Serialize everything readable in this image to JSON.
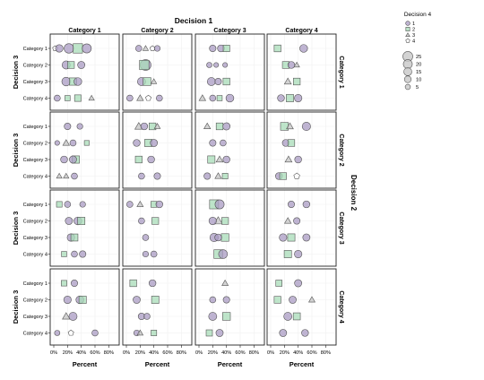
{
  "chart_data": {
    "type": "scatter",
    "title": "Decision 1",
    "top_strip_title": "Decision 1",
    "right_strip_title": "Decision 2",
    "row_axis_title": "Decision 3",
    "xlabel": "Percent",
    "x_ticks": [
      "0%",
      "20%",
      "40%",
      "60%",
      "80%"
    ],
    "xlim": [
      0,
      90
    ],
    "panel_columns": [
      "Category 1",
      "Category 2",
      "Category 3",
      "Category 4"
    ],
    "panel_rows": [
      "Category 1",
      "Category 2",
      "Category 3",
      "Category 4"
    ],
    "y_categories": [
      "Category 1",
      "Category 2",
      "Category 3",
      "Category 4"
    ],
    "legend_shape_title": "Decision 4",
    "legend_shape_labels": [
      "1",
      "2",
      "3",
      "4"
    ],
    "legend_size_values": [
      25,
      20,
      15,
      10,
      5
    ],
    "colors": {
      "1": "#a99bc3",
      "2": "#a8dcb8",
      "3": "#c4c4c4",
      "4": "#ffffff"
    },
    "panels": [
      {
        "row": 1,
        "col": 1,
        "points": [
          [
            2,
            1,
            4,
            4
          ],
          [
            8,
            1,
            1,
            10
          ],
          [
            22,
            1,
            1,
            18
          ],
          [
            35,
            1,
            2,
            22
          ],
          [
            48,
            1,
            1,
            16
          ],
          [
            18,
            2,
            1,
            12
          ],
          [
            25,
            2,
            2,
            10
          ],
          [
            40,
            2,
            1,
            9
          ],
          [
            18,
            3,
            1,
            14
          ],
          [
            28,
            3,
            2,
            12
          ],
          [
            35,
            3,
            1,
            11
          ],
          [
            5,
            4,
            1,
            6
          ],
          [
            20,
            4,
            2,
            5
          ],
          [
            35,
            4,
            2,
            9
          ],
          [
            55,
            4,
            3,
            5
          ]
        ]
      },
      {
        "row": 1,
        "col": 2,
        "points": [
          [
            18,
            1,
            1,
            6
          ],
          [
            28,
            1,
            3,
            5
          ],
          [
            38,
            1,
            4,
            4
          ],
          [
            45,
            1,
            1,
            5
          ],
          [
            28,
            2,
            1,
            24
          ],
          [
            26,
            2,
            2,
            22
          ],
          [
            22,
            3,
            1,
            12
          ],
          [
            30,
            3,
            2,
            14
          ],
          [
            40,
            3,
            3,
            5
          ],
          [
            5,
            4,
            1,
            6
          ],
          [
            20,
            4,
            3,
            8
          ],
          [
            32,
            4,
            4,
            5
          ],
          [
            48,
            4,
            1,
            6
          ]
        ]
      },
      {
        "row": 1,
        "col": 3,
        "points": [
          [
            20,
            1,
            1,
            7
          ],
          [
            32,
            1,
            1,
            8
          ],
          [
            40,
            1,
            2,
            9
          ],
          [
            15,
            2,
            1,
            4
          ],
          [
            25,
            2,
            1,
            3
          ],
          [
            38,
            2,
            1,
            3
          ],
          [
            18,
            3,
            1,
            12
          ],
          [
            28,
            3,
            1,
            7
          ],
          [
            40,
            3,
            2,
            10
          ],
          [
            5,
            4,
            3,
            8
          ],
          [
            20,
            4,
            1,
            6
          ],
          [
            30,
            4,
            2,
            5
          ],
          [
            45,
            4,
            1,
            11
          ]
        ]
      },
      {
        "row": 1,
        "col": 4,
        "points": [
          [
            10,
            1,
            2,
            10
          ],
          [
            48,
            1,
            1,
            11
          ],
          [
            22,
            2,
            2,
            10
          ],
          [
            30,
            2,
            1,
            8
          ],
          [
            38,
            2,
            3,
            5
          ],
          [
            25,
            3,
            3,
            9
          ],
          [
            38,
            3,
            2,
            10
          ],
          [
            15,
            4,
            1,
            8
          ],
          [
            28,
            4,
            2,
            12
          ],
          [
            40,
            4,
            1,
            10
          ]
        ]
      },
      {
        "row": 2,
        "col": 1,
        "points": [
          [
            20,
            1,
            1,
            7
          ],
          [
            38,
            1,
            1,
            5
          ],
          [
            5,
            2,
            1,
            3
          ],
          [
            18,
            2,
            3,
            8
          ],
          [
            28,
            2,
            1,
            6
          ],
          [
            48,
            2,
            2,
            4
          ],
          [
            15,
            3,
            1,
            8
          ],
          [
            32,
            3,
            2,
            12
          ],
          [
            28,
            3,
            1,
            9
          ],
          [
            18,
            4,
            3,
            5
          ],
          [
            30,
            4,
            1,
            6
          ],
          [
            8,
            4,
            3,
            5
          ]
        ]
      },
      {
        "row": 2,
        "col": 2,
        "points": [
          [
            18,
            1,
            3,
            12
          ],
          [
            26,
            1,
            1,
            8
          ],
          [
            38,
            1,
            2,
            10
          ],
          [
            45,
            1,
            3,
            6
          ],
          [
            15,
            2,
            1,
            8
          ],
          [
            32,
            2,
            2,
            12
          ],
          [
            40,
            2,
            1,
            9
          ],
          [
            18,
            3,
            2,
            10
          ],
          [
            36,
            3,
            1,
            8
          ],
          [
            22,
            4,
            1,
            6
          ],
          [
            45,
            4,
            1,
            7
          ]
        ]
      },
      {
        "row": 2,
        "col": 3,
        "points": [
          [
            12,
            1,
            3,
            8
          ],
          [
            30,
            1,
            2,
            10
          ],
          [
            40,
            1,
            1,
            9
          ],
          [
            20,
            2,
            1,
            7
          ],
          [
            35,
            2,
            1,
            6
          ],
          [
            18,
            3,
            2,
            12
          ],
          [
            30,
            3,
            3,
            9
          ],
          [
            40,
            3,
            1,
            8
          ],
          [
            12,
            4,
            1,
            7
          ],
          [
            28,
            4,
            3,
            8
          ],
          [
            38,
            4,
            2,
            6
          ]
        ]
      },
      {
        "row": 2,
        "col": 4,
        "points": [
          [
            20,
            1,
            2,
            14
          ],
          [
            28,
            1,
            3,
            9
          ],
          [
            52,
            1,
            1,
            13
          ],
          [
            22,
            2,
            1,
            8
          ],
          [
            30,
            2,
            2,
            10
          ],
          [
            26,
            3,
            3,
            9
          ],
          [
            40,
            3,
            1,
            8
          ],
          [
            12,
            4,
            1,
            8
          ],
          [
            18,
            4,
            2,
            10
          ],
          [
            38,
            4,
            4,
            6
          ]
        ]
      },
      {
        "row": 3,
        "col": 1,
        "points": [
          [
            8,
            1,
            2,
            6
          ],
          [
            20,
            1,
            1,
            6
          ],
          [
            42,
            1,
            1,
            5
          ],
          [
            22,
            2,
            1,
            9
          ],
          [
            35,
            2,
            1,
            11
          ],
          [
            40,
            2,
            2,
            12
          ],
          [
            25,
            3,
            1,
            10
          ],
          [
            30,
            3,
            2,
            11
          ],
          [
            15,
            4,
            2,
            5
          ],
          [
            30,
            4,
            1,
            6
          ],
          [
            42,
            4,
            1,
            7
          ]
        ]
      },
      {
        "row": 3,
        "col": 2,
        "points": [
          [
            5,
            1,
            1,
            6
          ],
          [
            20,
            1,
            3,
            7
          ],
          [
            40,
            1,
            2,
            7
          ],
          [
            48,
            1,
            1,
            8
          ],
          [
            22,
            2,
            1,
            6
          ],
          [
            42,
            2,
            2,
            10
          ],
          [
            28,
            3,
            1,
            6
          ],
          [
            28,
            4,
            1,
            5
          ],
          [
            40,
            4,
            1,
            6
          ]
        ]
      },
      {
        "row": 3,
        "col": 3,
        "points": [
          [
            22,
            1,
            2,
            20
          ],
          [
            30,
            1,
            1,
            16
          ],
          [
            28,
            2,
            3,
            14
          ],
          [
            38,
            2,
            2,
            10
          ],
          [
            20,
            2,
            1,
            10
          ],
          [
            22,
            3,
            1,
            13
          ],
          [
            38,
            3,
            2,
            13
          ],
          [
            28,
            3,
            1,
            8
          ],
          [
            28,
            4,
            2,
            18
          ],
          [
            35,
            4,
            1,
            15
          ]
        ]
      },
      {
        "row": 3,
        "col": 4,
        "points": [
          [
            30,
            1,
            1,
            7
          ],
          [
            52,
            1,
            1,
            8
          ],
          [
            25,
            2,
            3,
            8
          ],
          [
            38,
            2,
            1,
            7
          ],
          [
            18,
            3,
            1,
            10
          ],
          [
            30,
            3,
            2,
            12
          ],
          [
            52,
            3,
            1,
            9
          ],
          [
            25,
            4,
            2,
            12
          ],
          [
            40,
            4,
            1,
            10
          ]
        ]
      },
      {
        "row": 4,
        "col": 1,
        "points": [
          [
            15,
            1,
            2,
            6
          ],
          [
            30,
            1,
            1,
            7
          ],
          [
            20,
            2,
            1,
            10
          ],
          [
            38,
            2,
            1,
            11
          ],
          [
            42,
            2,
            2,
            12
          ],
          [
            28,
            3,
            1,
            12
          ],
          [
            18,
            3,
            3,
            11
          ],
          [
            5,
            4,
            1,
            4
          ],
          [
            25,
            4,
            4,
            5
          ],
          [
            60,
            4,
            1,
            6
          ]
        ]
      },
      {
        "row": 4,
        "col": 2,
        "points": [
          [
            10,
            1,
            2,
            10
          ],
          [
            38,
            1,
            1,
            8
          ],
          [
            42,
            2,
            2,
            12
          ],
          [
            15,
            2,
            1,
            9
          ],
          [
            22,
            3,
            1,
            7
          ],
          [
            30,
            3,
            1,
            6
          ],
          [
            15,
            4,
            1,
            5
          ],
          [
            20,
            4,
            3,
            6
          ],
          [
            40,
            4,
            2,
            6
          ]
        ]
      },
      {
        "row": 4,
        "col": 3,
        "points": [
          [
            38,
            1,
            3,
            7
          ],
          [
            20,
            2,
            1,
            6
          ],
          [
            40,
            2,
            1,
            7
          ],
          [
            20,
            3,
            1,
            12
          ],
          [
            40,
            3,
            2,
            14
          ],
          [
            15,
            4,
            2,
            8
          ],
          [
            30,
            4,
            1,
            9
          ]
        ]
      },
      {
        "row": 4,
        "col": 4,
        "points": [
          [
            12,
            1,
            2,
            8
          ],
          [
            40,
            1,
            1,
            9
          ],
          [
            10,
            2,
            2,
            10
          ],
          [
            32,
            2,
            1,
            9
          ],
          [
            60,
            2,
            3,
            7
          ],
          [
            25,
            3,
            1,
            12
          ],
          [
            38,
            3,
            2,
            11
          ],
          [
            18,
            4,
            1,
            9
          ],
          [
            50,
            4,
            1,
            8
          ]
        ]
      }
    ]
  }
}
